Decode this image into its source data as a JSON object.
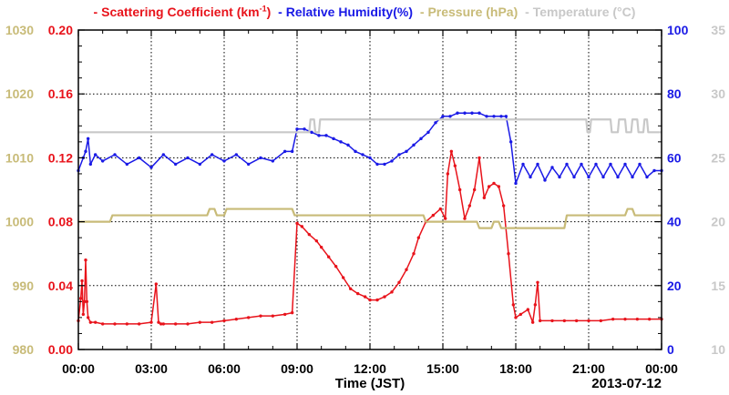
{
  "chart_data": {
    "type": "line",
    "legend": {
      "scattering": {
        "dash": "-",
        "text_main": "Scattering Coefficient (km",
        "sup": "-1",
        "text_tail": ")"
      },
      "humidity": {
        "dash": "-",
        "text": "Relative Humidity(%)"
      },
      "pressure": {
        "dash": "-",
        "text": "Pressure (hPa)"
      },
      "temperature": {
        "dash": "-",
        "text": "Temperature (",
        "deg": "°",
        "tail": "C)"
      }
    },
    "colors": {
      "scattering": "#e8131b",
      "humidity": "#1a1ae6",
      "pressure": "#c8bb78",
      "temperature": "#c8c8c8",
      "grid": "#000000"
    },
    "xlabel": "Time (JST)",
    "date_label": "2013-07-12",
    "x_range_hours": [
      0,
      24
    ],
    "x_ticks": [
      "00:00",
      "03:00",
      "06:00",
      "09:00",
      "12:00",
      "15:00",
      "18:00",
      "21:00",
      "00:00"
    ],
    "axes": {
      "scattering": {
        "range": [
          0,
          0.2
        ],
        "ticks": [
          "0.00",
          "0.04",
          "0.08",
          "0.12",
          "0.16",
          "0.20"
        ]
      },
      "pressure": {
        "range": [
          980,
          1030
        ],
        "ticks": [
          "980",
          "990",
          "1000",
          "1010",
          "1020",
          "1030"
        ]
      },
      "humidity": {
        "range": [
          0,
          100
        ],
        "ticks": [
          "0",
          "20",
          "40",
          "60",
          "80",
          "100"
        ]
      },
      "temperature": {
        "range": [
          10,
          35
        ],
        "ticks": [
          "10",
          "15",
          "20",
          "25",
          "30",
          "35"
        ]
      }
    },
    "grid": true,
    "series": [
      {
        "name": "Scattering Coefficient (km-1)",
        "axis": "scattering",
        "x": [
          0.0,
          0.1,
          0.15,
          0.2,
          0.25,
          0.3,
          0.35,
          0.4,
          0.5,
          0.7,
          1.0,
          1.5,
          2.0,
          2.5,
          3.0,
          3.2,
          3.3,
          3.4,
          3.5,
          4.0,
          4.5,
          5.0,
          5.5,
          6.0,
          6.5,
          7.0,
          7.5,
          8.0,
          8.5,
          8.8,
          9.0,
          9.2,
          9.5,
          9.8,
          10.0,
          10.3,
          10.6,
          10.9,
          11.2,
          11.5,
          11.8,
          12.0,
          12.3,
          12.6,
          12.9,
          13.2,
          13.5,
          13.8,
          14.0,
          14.3,
          14.6,
          14.9,
          15.1,
          15.2,
          15.35,
          15.5,
          15.7,
          15.9,
          16.1,
          16.3,
          16.5,
          16.7,
          16.9,
          17.1,
          17.3,
          17.5,
          17.7,
          17.9,
          18.0,
          18.2,
          18.5,
          18.7,
          18.8,
          18.9,
          19.0,
          19.5,
          20.0,
          20.5,
          21.0,
          21.5,
          22.0,
          22.5,
          23.0,
          23.5,
          24.0
        ],
        "values": [
          0.018,
          0.032,
          0.043,
          0.022,
          0.03,
          0.056,
          0.03,
          0.02,
          0.017,
          0.017,
          0.016,
          0.016,
          0.016,
          0.016,
          0.017,
          0.041,
          0.017,
          0.016,
          0.016,
          0.016,
          0.016,
          0.017,
          0.017,
          0.018,
          0.019,
          0.02,
          0.021,
          0.021,
          0.022,
          0.023,
          0.079,
          0.077,
          0.072,
          0.068,
          0.064,
          0.058,
          0.052,
          0.045,
          0.038,
          0.035,
          0.033,
          0.031,
          0.031,
          0.033,
          0.036,
          0.042,
          0.05,
          0.06,
          0.07,
          0.08,
          0.084,
          0.088,
          0.082,
          0.11,
          0.124,
          0.115,
          0.1,
          0.082,
          0.09,
          0.1,
          0.12,
          0.095,
          0.102,
          0.104,
          0.102,
          0.09,
          0.06,
          0.028,
          0.02,
          0.022,
          0.025,
          0.017,
          0.028,
          0.042,
          0.018,
          0.018,
          0.018,
          0.018,
          0.018,
          0.018,
          0.019,
          0.019,
          0.019,
          0.019,
          0.019
        ]
      },
      {
        "name": "Relative Humidity(%)",
        "axis": "humidity",
        "x": [
          0.0,
          0.2,
          0.3,
          0.4,
          0.5,
          0.7,
          1.0,
          1.5,
          2.0,
          2.5,
          3.0,
          3.5,
          4.0,
          4.5,
          5.0,
          5.5,
          6.0,
          6.5,
          7.0,
          7.5,
          8.0,
          8.5,
          8.8,
          9.0,
          9.3,
          9.6,
          9.9,
          10.2,
          10.5,
          10.8,
          11.1,
          11.4,
          11.7,
          12.0,
          12.3,
          12.6,
          12.9,
          13.2,
          13.5,
          13.8,
          14.1,
          14.4,
          14.7,
          15.0,
          15.3,
          15.6,
          15.9,
          16.2,
          16.5,
          16.8,
          17.1,
          17.4,
          17.6,
          17.8,
          18.0,
          18.3,
          18.6,
          18.9,
          19.2,
          19.5,
          19.8,
          20.1,
          20.4,
          20.7,
          21.0,
          21.3,
          21.6,
          21.9,
          22.2,
          22.5,
          22.8,
          23.1,
          23.4,
          23.7,
          24.0
        ],
        "values": [
          56,
          60,
          62,
          66,
          58,
          61,
          59,
          61,
          58,
          60,
          57,
          61,
          58,
          60,
          58,
          61,
          59,
          61,
          58,
          60,
          59,
          62,
          62,
          69,
          69,
          68,
          67,
          67,
          66,
          65,
          64,
          62,
          61,
          60,
          58,
          58,
          59,
          61,
          62,
          64,
          66,
          68,
          71,
          73,
          73,
          74,
          74,
          74,
          74,
          73,
          73,
          73,
          73,
          65,
          52,
          58,
          54,
          58,
          53,
          57,
          54,
          58,
          54,
          58,
          54,
          58,
          54,
          58,
          54,
          58,
          54,
          58,
          54,
          56,
          56
        ]
      },
      {
        "name": "Pressure (hPa)",
        "axis": "pressure",
        "x": [
          0.0,
          1.3,
          1.4,
          5.3,
          5.4,
          5.6,
          5.7,
          6.0,
          6.1,
          8.8,
          8.9,
          9.1,
          9.2,
          14.2,
          14.3,
          16.4,
          16.5,
          17.0,
          17.1,
          17.3,
          17.4,
          20.0,
          20.1,
          22.5,
          22.6,
          22.8,
          22.9,
          24.0
        ],
        "values": [
          1000,
          1000,
          1001,
          1001,
          1002,
          1002,
          1001,
          1001,
          1002,
          1002,
          1001,
          1001,
          1001,
          1001,
          1000,
          1000,
          999,
          999,
          1000,
          1000,
          999,
          999,
          1001,
          1001,
          1002,
          1002,
          1001,
          1001
        ]
      },
      {
        "name": "Temperature (°C)",
        "axis": "temperature",
        "x": [
          0.0,
          9.5,
          9.55,
          9.7,
          9.75,
          9.9,
          9.95,
          10.1,
          10.15,
          20.9,
          20.95,
          21.05,
          21.1,
          21.9,
          21.95,
          22.2,
          22.25,
          22.5,
          22.55,
          22.75,
          22.8,
          23.0,
          23.05,
          23.25,
          23.3,
          23.4,
          23.45,
          24.0
        ],
        "values": [
          27,
          27,
          28,
          28,
          27,
          27,
          28,
          28,
          28,
          28,
          27,
          27,
          28,
          28,
          27,
          27,
          28,
          28,
          27,
          27,
          28,
          28,
          27,
          27,
          28,
          28,
          27,
          27
        ]
      }
    ]
  }
}
